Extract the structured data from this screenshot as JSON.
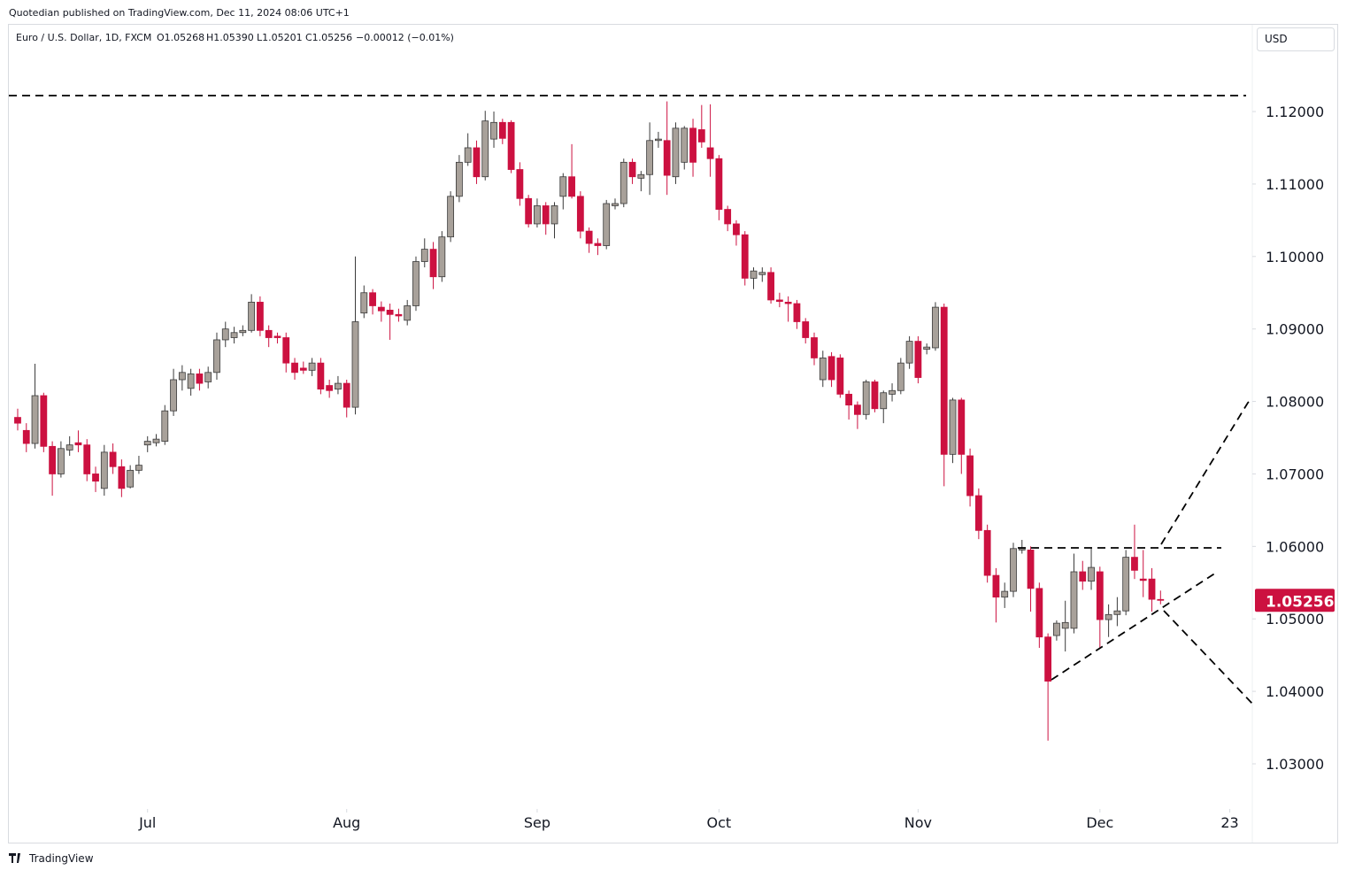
{
  "chart_data": {
    "type": "candlestick",
    "attribution": "Quotedian published on TradingView.com, Dec 11, 2024 08:06 UTC+1",
    "legend": {
      "symbol": "Euro / U.S. Dollar, 1D, FXCM",
      "open": "O1.05268",
      "high": "H1.05390",
      "low": "L1.05201",
      "close": "C1.05256",
      "change": "−0.00012 (−0.01%)"
    },
    "currency": "USD",
    "brand": "TradingView",
    "up_color": "#a8a19a",
    "down_color": "#cc1140",
    "border_color": "#3a3a3a",
    "open": [
      1.0778,
      1.076,
      1.0742,
      1.0808,
      1.0738,
      1.07,
      1.0733,
      1.0743,
      1.074,
      1.07,
      1.068,
      1.073,
      1.071,
      1.0682,
      1.0705,
      1.074,
      1.0743,
      1.0745,
      1.0787,
      1.083,
      1.0818,
      1.0838,
      1.0827,
      1.084,
      1.0885,
      1.0888,
      1.0895,
      1.0898,
      1.0937,
      1.0898,
      1.089,
      1.0888,
      1.0853,
      1.0846,
      1.0843,
      1.0853,
      1.0822,
      1.0817,
      1.0825,
      1.0792,
      1.0922,
      1.095,
      1.093,
      1.0926,
      1.092,
      1.0912,
      1.0932,
      1.0993,
      1.101,
      1.0972,
      1.1027,
      1.1083,
      1.113,
      1.115,
      1.111,
      1.1162,
      1.1185,
      1.1185,
      1.112,
      1.108,
      1.1045,
      1.107,
      1.1045,
      1.1083,
      1.111,
      1.1083,
      1.1035,
      1.1018,
      1.1015,
      1.107,
      1.1073,
      1.113,
      1.1108,
      1.1113,
      1.116,
      1.116,
      1.111,
      1.113,
      1.1177,
      1.1175,
      1.115,
      1.1135,
      1.1065,
      1.1045,
      1.103,
      1.097,
      1.0975,
      1.0978,
      1.094,
      1.0937,
      1.0935,
      1.091,
      1.0888,
      1.083,
      1.0862,
      1.086,
      1.081,
      1.0795,
      1.0782,
      1.0827,
      1.079,
      1.081,
      1.0815,
      1.0853,
      1.0883,
      1.0872,
      1.0874,
      1.093,
      1.0727,
      1.0802,
      1.0725,
      1.067,
      1.0622,
      1.056,
      1.053,
      1.0538,
      1.0595,
      1.0595,
      1.0542,
      1.0475,
      1.0477,
      1.0487,
      1.0487,
      1.0565,
      1.0552,
      1.0565,
      1.0499,
      1.0506,
      1.0511,
      1.0585,
      1.0555,
      1.0555,
      1.05268
    ],
    "high": [
      1.079,
      1.077,
      1.0852,
      1.0812,
      1.0745,
      1.0745,
      1.0752,
      1.076,
      1.0748,
      1.071,
      1.074,
      1.0742,
      1.072,
      1.0712,
      1.0725,
      1.0752,
      1.0755,
      1.0795,
      1.0845,
      1.085,
      1.0845,
      1.0845,
      1.0848,
      1.0895,
      1.091,
      1.0903,
      1.0905,
      1.0948,
      1.0945,
      1.0905,
      1.0895,
      1.0895,
      1.086,
      1.0855,
      1.086,
      1.086,
      1.083,
      1.0835,
      1.083,
      1.1,
      1.096,
      1.0955,
      1.0938,
      1.0935,
      1.0928,
      1.094,
      1.1,
      1.1025,
      1.102,
      1.1035,
      1.109,
      1.114,
      1.117,
      1.116,
      1.1201,
      1.12,
      1.119,
      1.1188,
      1.113,
      1.1085,
      1.108,
      1.1075,
      1.1075,
      1.1115,
      1.1155,
      1.109,
      1.104,
      1.1025,
      1.1078,
      1.108,
      1.1135,
      1.1135,
      1.1118,
      1.1185,
      1.1172,
      1.1214,
      1.1185,
      1.118,
      1.119,
      1.1209,
      1.121,
      1.114,
      1.107,
      1.105,
      1.1035,
      1.0985,
      1.0985,
      1.0985,
      1.095,
      1.0945,
      1.094,
      1.0915,
      1.0895,
      1.087,
      1.0868,
      1.0865,
      1.0815,
      1.08,
      1.083,
      1.083,
      1.0815,
      1.0825,
      1.086,
      1.089,
      1.089,
      1.088,
      1.0937,
      1.0935,
      1.0805,
      1.0805,
      1.0735,
      1.068,
      1.063,
      1.057,
      1.055,
      1.0605,
      1.0609,
      1.06,
      1.055,
      1.048,
      1.0498,
      1.0525,
      1.059,
      1.058,
      1.0597,
      1.0572,
      1.052,
      1.053,
      1.0595,
      1.063,
      1.0595,
      1.057,
      1.0539
    ],
    "low": [
      1.076,
      1.073,
      1.0735,
      1.073,
      1.067,
      1.0695,
      1.0725,
      1.073,
      1.069,
      1.0675,
      1.067,
      1.07,
      1.0668,
      1.068,
      1.07,
      1.073,
      1.0738,
      1.074,
      1.078,
      1.0815,
      1.0808,
      1.0815,
      1.0818,
      1.083,
      1.0875,
      1.088,
      1.089,
      1.0895,
      1.089,
      1.0875,
      1.088,
      1.084,
      1.083,
      1.0838,
      1.0835,
      1.081,
      1.0805,
      1.081,
      1.0778,
      1.0782,
      1.0915,
      1.092,
      1.091,
      1.0885,
      1.091,
      1.0905,
      1.0925,
      1.0985,
      1.0955,
      1.0965,
      1.102,
      1.1075,
      1.1125,
      1.11,
      1.1105,
      1.115,
      1.1155,
      1.1115,
      1.107,
      1.104,
      1.104,
      1.103,
      1.1025,
      1.1065,
      1.108,
      1.1025,
      1.1005,
      1.1002,
      1.101,
      1.1065,
      1.1068,
      1.11,
      1.109,
      1.1085,
      1.115,
      1.1085,
      1.11,
      1.112,
      1.111,
      1.115,
      1.111,
      1.105,
      1.1035,
      1.1015,
      1.096,
      1.0955,
      1.0965,
      1.0935,
      1.093,
      1.091,
      1.09,
      1.088,
      1.085,
      1.082,
      1.082,
      1.0805,
      1.0775,
      1.0762,
      1.0775,
      1.0785,
      1.077,
      1.08,
      1.081,
      1.0845,
      1.0825,
      1.0865,
      1.087,
      1.0683,
      1.0715,
      1.07,
      1.0655,
      1.061,
      1.055,
      1.0495,
      1.0515,
      1.053,
      1.059,
      1.051,
      1.046,
      1.0332,
      1.047,
      1.0455,
      1.048,
      1.054,
      1.054,
      1.046,
      1.0475,
      1.049,
      1.0505,
      1.0555,
      1.053,
      1.051,
      1.05201
    ],
    "close": [
      1.077,
      1.0742,
      1.0808,
      1.0738,
      1.07,
      1.0735,
      1.074,
      1.074,
      1.07,
      1.069,
      1.073,
      1.071,
      1.068,
      1.0705,
      1.0712,
      1.0745,
      1.0748,
      1.0787,
      1.083,
      1.084,
      1.0838,
      1.0825,
      1.084,
      1.0885,
      1.09,
      1.0895,
      1.0898,
      1.0937,
      1.0898,
      1.0888,
      1.0888,
      1.0853,
      1.084,
      1.0843,
      1.0853,
      1.0817,
      1.0815,
      1.0825,
      1.0792,
      1.091,
      1.095,
      1.0932,
      1.0925,
      1.092,
      1.0918,
      1.0932,
      1.0993,
      1.101,
      1.0972,
      1.1027,
      1.1083,
      1.113,
      1.115,
      1.111,
      1.1187,
      1.1185,
      1.1163,
      1.112,
      1.108,
      1.1045,
      1.107,
      1.1045,
      1.107,
      1.111,
      1.1083,
      1.1035,
      1.1018,
      1.1015,
      1.1073,
      1.1073,
      1.113,
      1.111,
      1.1113,
      1.116,
      1.1162,
      1.1112,
      1.1177,
      1.1177,
      1.113,
      1.1158,
      1.1135,
      1.1065,
      1.1045,
      1.103,
      1.097,
      1.098,
      1.0978,
      1.094,
      1.0938,
      1.0935,
      1.091,
      1.0888,
      1.086,
      1.086,
      1.083,
      1.081,
      1.0795,
      1.0782,
      1.0827,
      1.079,
      1.0812,
      1.0815,
      1.0853,
      1.0883,
      1.0833,
      1.0875,
      1.093,
      1.0727,
      1.0802,
      1.0727,
      1.067,
      1.0622,
      1.056,
      1.053,
      1.0538,
      1.0597,
      1.0597,
      1.0542,
      1.0475,
      1.0414,
      1.0494,
      1.0495,
      1.0565,
      1.0552,
      1.0571,
      1.0499,
      1.0506,
      1.0511,
      1.0585,
      1.0567,
      1.0553,
      1.0527,
      1.05256
    ],
    "xlim": [
      -1.02,
      142.6
    ],
    "xticks": [
      {
        "value": 15,
        "label": "Jul"
      },
      {
        "value": 38,
        "label": "Aug"
      },
      {
        "value": 60,
        "label": "Sep"
      },
      {
        "value": 81,
        "label": "Oct"
      },
      {
        "value": 104,
        "label": "Nov"
      },
      {
        "value": 125,
        "label": "Dec"
      },
      {
        "value": 140,
        "label": "23"
      }
    ],
    "ylim": [
      1.02426,
      1.13197
    ],
    "yticks": [
      {
        "value": 1.03,
        "label": "1.03000"
      },
      {
        "value": 1.04,
        "label": "1.04000"
      },
      {
        "value": 1.05,
        "label": "1.05000"
      },
      {
        "value": 1.06,
        "label": "1.06000"
      },
      {
        "value": 1.07,
        "label": "1.07000"
      },
      {
        "value": 1.08,
        "label": "1.08000"
      },
      {
        "value": 1.09,
        "label": "1.09000"
      },
      {
        "value": 1.1,
        "label": "1.10000"
      },
      {
        "value": 1.11,
        "label": "1.11000"
      },
      {
        "value": 1.12,
        "label": "1.12000"
      }
    ],
    "grid": false
  }
}
